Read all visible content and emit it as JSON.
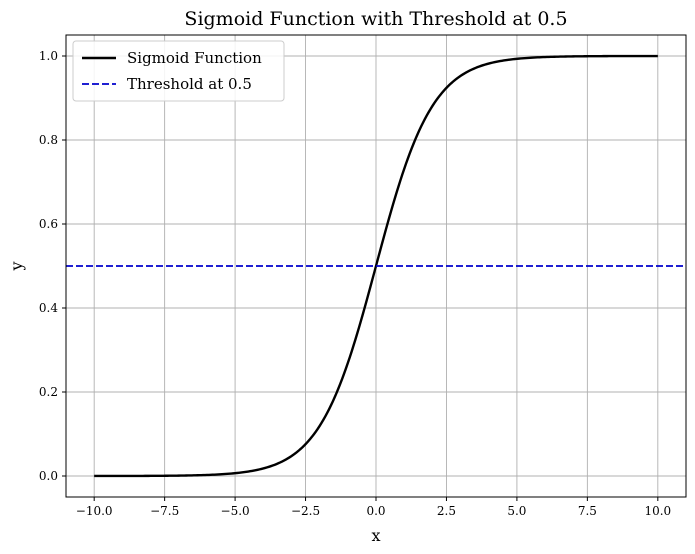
{
  "chart_data": {
    "type": "line",
    "title": "Sigmoid Function with Threshold at 0.5",
    "xlabel": "x",
    "ylabel": "y",
    "xlim": [
      -11,
      11
    ],
    "ylim": [
      -0.05,
      1.05
    ],
    "xticks": [
      -10.0,
      -7.5,
      -5.0,
      -2.5,
      0.0,
      2.5,
      5.0,
      7.5,
      10.0
    ],
    "xtick_labels": [
      "−10.0",
      "−7.5",
      "−5.0",
      "−2.5",
      "0.0",
      "2.5",
      "5.0",
      "7.5",
      "10.0"
    ],
    "yticks": [
      0.0,
      0.2,
      0.4,
      0.6,
      0.8,
      1.0
    ],
    "ytick_labels": [
      "0.0",
      "0.2",
      "0.4",
      "0.6",
      "0.8",
      "1.0"
    ],
    "grid": true,
    "legend_position": "upper-left",
    "series": [
      {
        "name": "Sigmoid Function",
        "style": "solid",
        "color": "#000000",
        "x": [
          -10,
          -9,
          -8,
          -7,
          -6,
          -5,
          -4,
          -3.5,
          -3,
          -2.5,
          -2,
          -1.5,
          -1,
          -0.5,
          0,
          0.5,
          1,
          1.5,
          2,
          2.5,
          3,
          3.5,
          4,
          5,
          6,
          7,
          8,
          9,
          10
        ],
        "y": [
          5e-05,
          0.00012,
          0.00034,
          0.00091,
          0.00247,
          0.00669,
          0.01799,
          0.02931,
          0.04743,
          0.07586,
          0.1192,
          0.18243,
          0.26894,
          0.37754,
          0.5,
          0.62246,
          0.73106,
          0.81757,
          0.8808,
          0.92414,
          0.95257,
          0.97069,
          0.98201,
          0.99331,
          0.99753,
          0.99909,
          0.99966,
          0.99988,
          0.99995
        ]
      },
      {
        "name": "Threshold at 0.5",
        "style": "dashed",
        "color": "#0000cc",
        "y_constant": 0.5
      }
    ]
  }
}
